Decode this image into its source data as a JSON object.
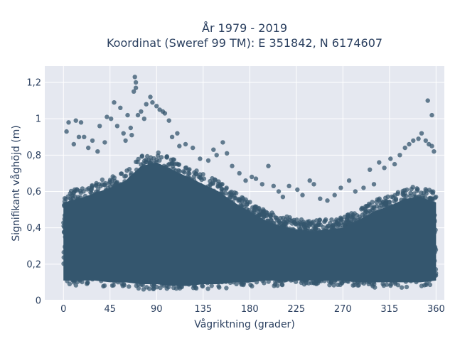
{
  "chart_data": {
    "type": "scatter",
    "title_line1": "År 1979 - 2019",
    "title_line2": "Koordinat (Sweref 99 TM): E 351842, N 6174607",
    "xlabel": "Vågriktning (grader)",
    "ylabel": "Signifikant våghöjd (m)",
    "xlim": [
      -18,
      368
    ],
    "ylim": [
      0,
      1.29
    ],
    "x_ticks": [
      0,
      45,
      90,
      135,
      180,
      225,
      270,
      315,
      360
    ],
    "x_tick_labels": [
      "0",
      "45",
      "90",
      "135",
      "180",
      "225",
      "270",
      "315",
      "360"
    ],
    "y_ticks": [
      0,
      0.2,
      0.4,
      0.6,
      0.8,
      1,
      1.2
    ],
    "y_tick_labels": [
      "0",
      "0,2",
      "0,4",
      "0,6",
      "0,8",
      "1",
      "1,2"
    ],
    "grid": true,
    "legend": "none",
    "marker_color": "#34566e",
    "plot_background": "#e5e8f0",
    "density_band": {
      "x": [
        0,
        15,
        30,
        45,
        60,
        75,
        90,
        105,
        120,
        135,
        150,
        165,
        180,
        195,
        210,
        225,
        240,
        255,
        270,
        285,
        300,
        315,
        330,
        345,
        360
      ],
      "y_low": [
        0.08,
        0.08,
        0.08,
        0.07,
        0.07,
        0.06,
        0.06,
        0.05,
        0.05,
        0.06,
        0.06,
        0.07,
        0.07,
        0.08,
        0.08,
        0.08,
        0.08,
        0.08,
        0.08,
        0.07,
        0.07,
        0.07,
        0.07,
        0.07,
        0.08
      ],
      "y_high": [
        0.6,
        0.62,
        0.65,
        0.68,
        0.72,
        0.8,
        0.82,
        0.78,
        0.74,
        0.7,
        0.66,
        0.6,
        0.55,
        0.5,
        0.47,
        0.45,
        0.44,
        0.45,
        0.46,
        0.5,
        0.55,
        0.58,
        0.62,
        0.63,
        0.6
      ]
    },
    "outer_points": [
      {
        "x": 69,
        "y": 1.23
      },
      {
        "x": 70,
        "y": 1.2
      },
      {
        "x": 70,
        "y": 1.17
      },
      {
        "x": 68,
        "y": 1.15
      },
      {
        "x": 80,
        "y": 1.08
      },
      {
        "x": 84,
        "y": 1.12
      },
      {
        "x": 86,
        "y": 1.09
      },
      {
        "x": 90,
        "y": 1.07
      },
      {
        "x": 93,
        "y": 1.05
      },
      {
        "x": 96,
        "y": 1.04
      },
      {
        "x": 98,
        "y": 1.03
      },
      {
        "x": 75,
        "y": 1.04
      },
      {
        "x": 72,
        "y": 1.02
      },
      {
        "x": 78,
        "y": 1.0
      },
      {
        "x": 62,
        "y": 1.02
      },
      {
        "x": 55,
        "y": 1.06
      },
      {
        "x": 49,
        "y": 1.09
      },
      {
        "x": 42,
        "y": 1.01
      },
      {
        "x": 46,
        "y": 1.0
      },
      {
        "x": 35,
        "y": 0.96
      },
      {
        "x": 12,
        "y": 0.99
      },
      {
        "x": 17,
        "y": 0.98
      },
      {
        "x": 5,
        "y": 0.98
      },
      {
        "x": 3,
        "y": 0.93
      },
      {
        "x": 15,
        "y": 0.9
      },
      {
        "x": 20,
        "y": 0.9
      },
      {
        "x": 28,
        "y": 0.88
      },
      {
        "x": 52,
        "y": 0.96
      },
      {
        "x": 58,
        "y": 0.92
      },
      {
        "x": 65,
        "y": 0.95
      },
      {
        "x": 102,
        "y": 0.99
      },
      {
        "x": 110,
        "y": 0.92
      },
      {
        "x": 118,
        "y": 0.86
      },
      {
        "x": 125,
        "y": 0.84
      },
      {
        "x": 132,
        "y": 0.78
      },
      {
        "x": 140,
        "y": 0.77
      },
      {
        "x": 145,
        "y": 0.83
      },
      {
        "x": 148,
        "y": 0.8
      },
      {
        "x": 154,
        "y": 0.87
      },
      {
        "x": 158,
        "y": 0.81
      },
      {
        "x": 163,
        "y": 0.74
      },
      {
        "x": 170,
        "y": 0.7
      },
      {
        "x": 176,
        "y": 0.66
      },
      {
        "x": 182,
        "y": 0.68
      },
      {
        "x": 186,
        "y": 0.67
      },
      {
        "x": 192,
        "y": 0.64
      },
      {
        "x": 198,
        "y": 0.74
      },
      {
        "x": 203,
        "y": 0.63
      },
      {
        "x": 208,
        "y": 0.6
      },
      {
        "x": 212,
        "y": 0.57
      },
      {
        "x": 218,
        "y": 0.63
      },
      {
        "x": 226,
        "y": 0.61
      },
      {
        "x": 231,
        "y": 0.58
      },
      {
        "x": 238,
        "y": 0.66
      },
      {
        "x": 242,
        "y": 0.64
      },
      {
        "x": 248,
        "y": 0.56
      },
      {
        "x": 255,
        "y": 0.55
      },
      {
        "x": 262,
        "y": 0.58
      },
      {
        "x": 268,
        "y": 0.62
      },
      {
        "x": 276,
        "y": 0.66
      },
      {
        "x": 282,
        "y": 0.6
      },
      {
        "x": 290,
        "y": 0.62
      },
      {
        "x": 296,
        "y": 0.72
      },
      {
        "x": 300,
        "y": 0.64
      },
      {
        "x": 305,
        "y": 0.76
      },
      {
        "x": 310,
        "y": 0.73
      },
      {
        "x": 316,
        "y": 0.78
      },
      {
        "x": 320,
        "y": 0.75
      },
      {
        "x": 325,
        "y": 0.8
      },
      {
        "x": 330,
        "y": 0.84
      },
      {
        "x": 334,
        "y": 0.86
      },
      {
        "x": 338,
        "y": 0.88
      },
      {
        "x": 343,
        "y": 0.89
      },
      {
        "x": 346,
        "y": 0.92
      },
      {
        "x": 350,
        "y": 0.88
      },
      {
        "x": 353,
        "y": 0.86
      },
      {
        "x": 356,
        "y": 0.85
      },
      {
        "x": 358,
        "y": 0.82
      },
      {
        "x": 352,
        "y": 1.1
      },
      {
        "x": 356,
        "y": 1.02
      },
      {
        "x": 10,
        "y": 0.86
      },
      {
        "x": 24,
        "y": 0.84
      },
      {
        "x": 33,
        "y": 0.82
      },
      {
        "x": 40,
        "y": 0.87
      },
      {
        "x": 60,
        "y": 0.88
      },
      {
        "x": 66,
        "y": 0.91
      },
      {
        "x": 105,
        "y": 0.9
      },
      {
        "x": 112,
        "y": 0.85
      }
    ]
  }
}
